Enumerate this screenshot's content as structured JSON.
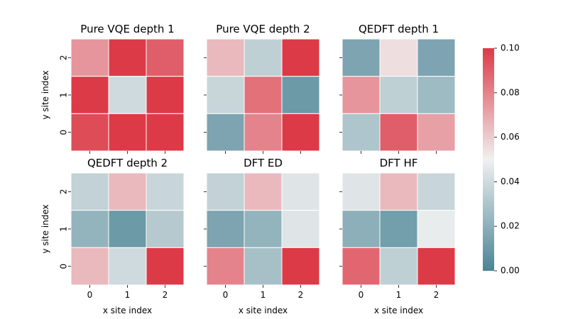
{
  "chart_data": {
    "type": "heatmap",
    "colormap": {
      "low": "#4b8495",
      "mid": "#f0f0f0",
      "high": "#dc3a47"
    },
    "vmin": 0.0,
    "vmax": 0.1,
    "colorbar_ticks": [
      "0.00",
      "0.02",
      "0.04",
      "0.06",
      "0.08",
      "0.10"
    ],
    "xlabel": "x site index",
    "ylabel": "y site index",
    "x_ticks": [
      "0",
      "1",
      "2"
    ],
    "y_ticks": [
      "0",
      "1",
      "2"
    ],
    "panels": [
      {
        "title": "Pure VQE depth 1",
        "grid": [
          [
            0.075,
            0.1,
            0.09
          ],
          [
            0.1,
            0.04,
            0.1
          ],
          [
            0.095,
            0.1,
            0.1
          ]
        ]
      },
      {
        "title": "Pure VQE depth 2",
        "grid": [
          [
            0.065,
            0.035,
            0.1
          ],
          [
            0.038,
            0.085,
            0.01
          ],
          [
            0.015,
            0.08,
            0.1
          ]
        ]
      },
      {
        "title": "QEDFT depth 1",
        "grid": [
          [
            0.015,
            0.055,
            0.015
          ],
          [
            0.075,
            0.035,
            0.025
          ],
          [
            0.03,
            0.09,
            0.072
          ]
        ]
      },
      {
        "title": "QEDFT depth 2",
        "grid": [
          [
            0.036,
            0.065,
            0.038
          ],
          [
            0.022,
            0.01,
            0.032
          ],
          [
            0.065,
            0.04,
            0.1
          ]
        ]
      },
      {
        "title": "DFT ED",
        "grid": [
          [
            0.036,
            0.065,
            0.045
          ],
          [
            0.015,
            0.022,
            0.045
          ],
          [
            0.08,
            0.028,
            0.1
          ]
        ]
      },
      {
        "title": "DFT HF",
        "grid": [
          [
            0.045,
            0.065,
            0.038
          ],
          [
            0.02,
            0.012,
            0.048
          ],
          [
            0.088,
            0.035,
            0.1
          ]
        ]
      }
    ]
  }
}
